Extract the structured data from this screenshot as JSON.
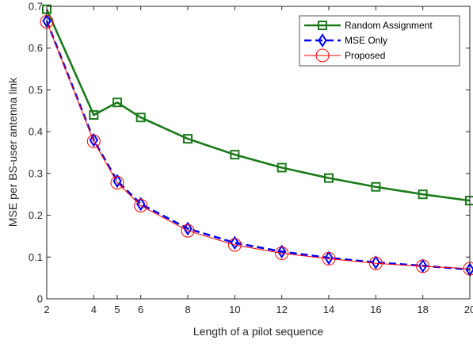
{
  "chart_data": {
    "type": "line",
    "title": "",
    "xlabel": "Length of a pilot sequence",
    "ylabel": "MSE per BS-user antenna link",
    "xlim": [
      2,
      20
    ],
    "ylim": [
      0,
      0.7
    ],
    "x_ticks": [
      2,
      4,
      5,
      6,
      8,
      10,
      12,
      14,
      16,
      18,
      20
    ],
    "y_ticks": [
      0,
      0.1,
      0.2,
      0.3,
      0.4,
      0.5,
      0.6,
      0.7
    ],
    "grid": false,
    "legend_position": "top-right",
    "series": [
      {
        "name": "Random Assignment",
        "color": "#1a7a1a",
        "marker": "square",
        "line_style": "solid",
        "x": [
          2,
          4,
          5,
          6,
          8,
          10,
          12,
          14,
          16,
          18,
          20
        ],
        "y": [
          0.693,
          0.44,
          0.47,
          0.434,
          0.383,
          0.345,
          0.314,
          0.289,
          0.268,
          0.25,
          0.235
        ]
      },
      {
        "name": "MSE Only",
        "color": "#0000ff",
        "marker": "diamond",
        "line_style": "dashed",
        "x": [
          2,
          4,
          5,
          6,
          8,
          10,
          12,
          14,
          16,
          18,
          20
        ],
        "y": [
          0.665,
          0.38,
          0.282,
          0.227,
          0.168,
          0.134,
          0.113,
          0.098,
          0.087,
          0.079,
          0.07
        ]
      },
      {
        "name": "Proposed",
        "color": "#ff0000",
        "marker": "circle",
        "line_style": "solid",
        "x": [
          2,
          4,
          5,
          6,
          8,
          10,
          12,
          14,
          16,
          18,
          20
        ],
        "y": [
          0.663,
          0.377,
          0.278,
          0.223,
          0.163,
          0.129,
          0.109,
          0.096,
          0.085,
          0.078,
          0.072
        ]
      }
    ]
  }
}
